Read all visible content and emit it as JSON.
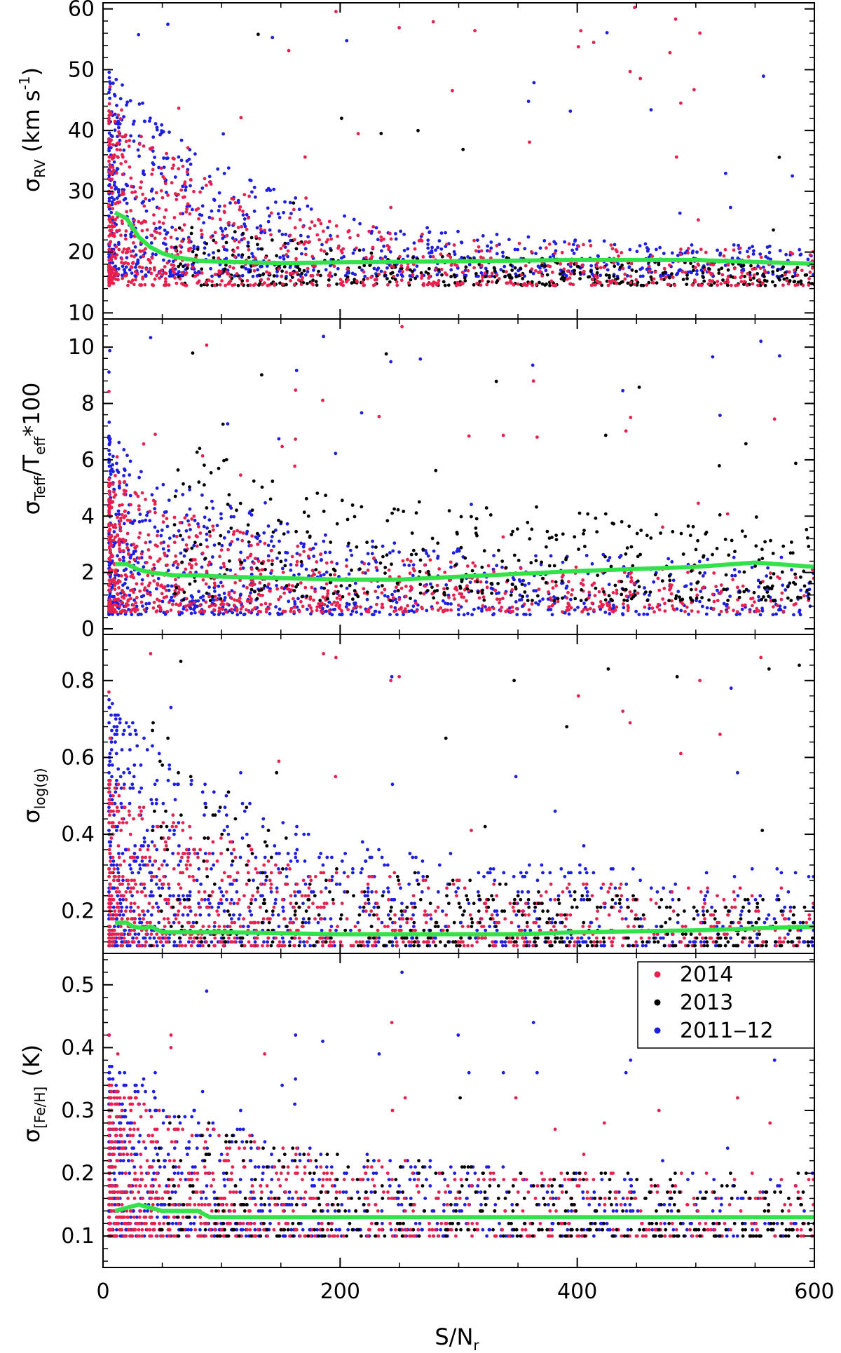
{
  "figure": {
    "xlabel_main": "S/N",
    "xlabel_sub": "r",
    "xlim": [
      0,
      600
    ],
    "x_ticks": [
      "0",
      "200",
      "400",
      "600"
    ],
    "x_tick_values": [
      0,
      200,
      400,
      600
    ]
  },
  "legend": {
    "placement": "top-right of bottom panel",
    "entries": [
      {
        "label": "2014",
        "color": "#e8204d"
      },
      {
        "label": "2013",
        "color": "#000000"
      },
      {
        "label": "2011‒12",
        "color": "#1e1ee0"
      }
    ]
  },
  "chart_data": [
    {
      "type": "scatter",
      "ylabel_symbol": "σ",
      "ylabel_sub": "RV",
      "ylabel_unit_pre": "(km s",
      "ylabel_unit_sup": "-1",
      "ylabel_unit_post": ")",
      "xlim": [
        0,
        600
      ],
      "ylim": [
        9,
        61
      ],
      "y_ticks": [
        "10",
        "20",
        "30",
        "40",
        "50",
        "60"
      ],
      "y_tick_values": [
        10,
        20,
        30,
        40,
        50,
        60
      ],
      "scatter_model": {
        "series_order": [
          "2011‒12",
          "2013",
          "2014"
        ],
        "2014": {
          "color": "#e8204d",
          "x_range": [
            5,
            600
          ],
          "base_min": 14.5,
          "typical_scatter": [
            6,
            30
          ],
          "outliers_max": 61
        },
        "2013": {
          "color": "#000000",
          "x_range": [
            60,
            600
          ],
          "base_min": 14.5,
          "typical_scatter": [
            4,
            12
          ],
          "outliers_max": 58
        },
        "2011‒12": {
          "color": "#1e1ee0",
          "x_range": [
            5,
            600
          ],
          "base_min": 16,
          "typical_scatter": [
            5,
            35
          ],
          "outliers_max": 61
        }
      },
      "trend": {
        "name": "median",
        "color": "#33e24a",
        "x": [
          10,
          20,
          30,
          40,
          50,
          60,
          80,
          100,
          150,
          200,
          300,
          400,
          500,
          560,
          600
        ],
        "y": [
          26.5,
          25.5,
          22.5,
          20.8,
          19.8,
          19.2,
          18.6,
          18.4,
          18.2,
          18.3,
          18.5,
          18.7,
          18.7,
          18.3,
          18.1
        ]
      }
    },
    {
      "type": "scatter",
      "ylabel_symbol": "σ",
      "ylabel_sub": "Teff",
      "ylabel_mid": "/T",
      "ylabel_sub2": "eff",
      "ylabel_post": "*100",
      "xlim": [
        0,
        600
      ],
      "ylim": [
        -0.2,
        11
      ],
      "y_ticks": [
        "0",
        "2",
        "4",
        "6",
        "8",
        "10"
      ],
      "y_tick_values": [
        0,
        2,
        4,
        6,
        8,
        10
      ],
      "scatter_model": {
        "series_order": [
          "2011‒12",
          "2014",
          "2013"
        ],
        "2014": {
          "color": "#e8204d",
          "x_range": [
            5,
            600
          ],
          "base_min": 0.6,
          "typical_scatter": [
            1.5,
            5
          ],
          "outliers_max": 10.8
        },
        "2013": {
          "color": "#000000",
          "x_range": [
            60,
            600
          ],
          "base_min": 1.0,
          "typical_scatter": [
            3,
            6
          ],
          "outliers_max": 10.8
        },
        "2011‒12": {
          "color": "#1e1ee0",
          "x_range": [
            5,
            600
          ],
          "base_min": 0.5,
          "typical_scatter": [
            2,
            6.5
          ],
          "outliers_max": 10.5
        }
      },
      "trend": {
        "name": "median",
        "color": "#33e24a",
        "x": [
          10,
          20,
          30,
          40,
          60,
          80,
          100,
          150,
          200,
          250,
          300,
          400,
          500,
          550,
          600
        ],
        "y": [
          2.3,
          2.3,
          2.1,
          2.0,
          1.9,
          1.9,
          1.85,
          1.8,
          1.75,
          1.75,
          1.85,
          2.05,
          2.2,
          2.35,
          2.2
        ]
      }
    },
    {
      "type": "scatter",
      "ylabel_symbol": "σ",
      "ylabel_sub": "log(g)",
      "xlim": [
        0,
        600
      ],
      "ylim": [
        0.09,
        0.92
      ],
      "y_ticks": [
        "0.2",
        "0.4",
        "0.6",
        "0.8"
      ],
      "y_tick_values": [
        0.2,
        0.4,
        0.6,
        0.8
      ],
      "scatter_model": {
        "series_order": [
          "2011‒12",
          "2014",
          "2013"
        ],
        "quantized_step": 0.01,
        "2014": {
          "color": "#e8204d",
          "x_range": [
            5,
            600
          ],
          "base_min": 0.11,
          "typical_scatter": [
            0.15,
            0.45
          ],
          "outliers_max": 0.88
        },
        "2013": {
          "color": "#000000",
          "x_range": [
            40,
            600
          ],
          "base_min": 0.11,
          "typical_scatter": [
            0.12,
            0.6
          ],
          "outliers_max": 0.9
        },
        "2011‒12": {
          "color": "#1e1ee0",
          "x_range": [
            5,
            600
          ],
          "base_min": 0.11,
          "typical_scatter": [
            0.2,
            0.65
          ],
          "outliers_max": 0.85
        }
      },
      "trend": {
        "name": "median",
        "color": "#33e24a",
        "x": [
          10,
          20,
          25,
          35,
          40,
          50,
          100,
          200,
          300,
          350,
          400,
          500,
          600
        ],
        "y": [
          0.17,
          0.17,
          0.16,
          0.155,
          0.16,
          0.145,
          0.145,
          0.14,
          0.14,
          0.14,
          0.145,
          0.15,
          0.16
        ]
      }
    },
    {
      "type": "scatter",
      "ylabel_symbol": "σ",
      "ylabel_sub": "[Fe/H]",
      "ylabel_unit": "(K)",
      "xlim": [
        0,
        600
      ],
      "ylim": [
        0.05,
        0.55
      ],
      "y_ticks": [
        "0.1",
        "0.2",
        "0.3",
        "0.4",
        "0.5"
      ],
      "y_tick_values": [
        0.1,
        0.2,
        0.3,
        0.4,
        0.5
      ],
      "scatter_model": {
        "series_order": [
          "2011‒12",
          "2014",
          "2013"
        ],
        "quantized_step": 0.01,
        "2014": {
          "color": "#e8204d",
          "x_range": [
            5,
            600
          ],
          "base_min": 0.1,
          "typical_scatter": [
            0.1,
            0.25
          ],
          "outliers_max": 0.46
        },
        "2013": {
          "color": "#000000",
          "x_range": [
            40,
            600
          ],
          "base_min": 0.1,
          "typical_scatter": [
            0.1,
            0.22
          ],
          "outliers_max": 0.47
        },
        "2011‒12": {
          "color": "#1e1ee0",
          "x_range": [
            5,
            600
          ],
          "base_min": 0.1,
          "typical_scatter": [
            0.1,
            0.28
          ],
          "outliers_max": 0.52
        }
      },
      "trend": {
        "name": "median",
        "color": "#33e24a",
        "x": [
          10,
          20,
          30,
          40,
          50,
          80,
          90,
          100,
          200,
          300,
          400,
          500,
          600
        ],
        "y": [
          0.14,
          0.145,
          0.15,
          0.145,
          0.14,
          0.14,
          0.13,
          0.13,
          0.13,
          0.13,
          0.13,
          0.13,
          0.13
        ]
      }
    }
  ]
}
